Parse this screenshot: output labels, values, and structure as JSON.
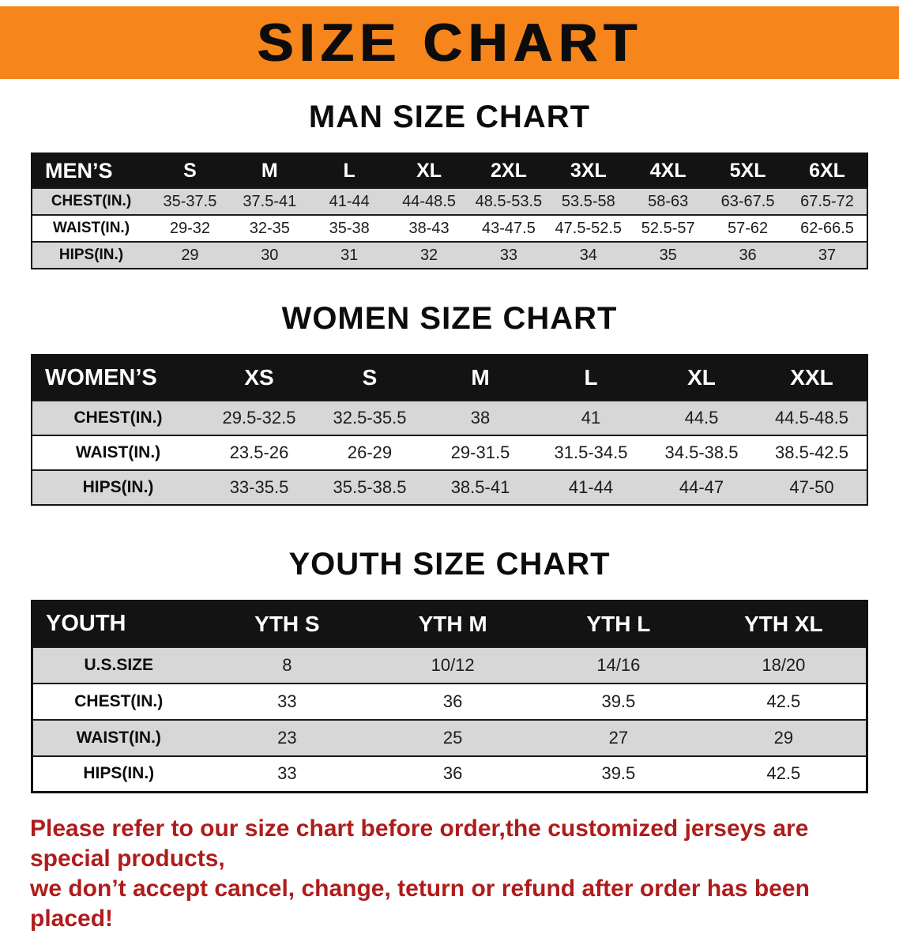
{
  "banner": {
    "title": "SIZE CHART"
  },
  "colors": {
    "banner_bg": "#F6861C",
    "header_bg": "#131313",
    "stripe": "#D7D7D7",
    "notice_text": "#B01C1C"
  },
  "sections": {
    "men": {
      "heading": "MAN SIZE CHART",
      "table": {
        "header": [
          "MEN’S",
          "S",
          "M",
          "L",
          "XL",
          "2XL",
          "3XL",
          "4XL",
          "5XL",
          "6XL"
        ],
        "rows": [
          [
            "CHEST(IN.)",
            "35-37.5",
            "37.5-41",
            "41-44",
            "44-48.5",
            "48.5-53.5",
            "53.5-58",
            "58-63",
            "63-67.5",
            "67.5-72"
          ],
          [
            "WAIST(IN.)",
            "29-32",
            "32-35",
            "35-38",
            "38-43",
            "43-47.5",
            "47.5-52.5",
            "52.5-57",
            "57-62",
            "62-66.5"
          ],
          [
            "HIPS(IN.)",
            "29",
            "30",
            "31",
            "32",
            "33",
            "34",
            "35",
            "36",
            "37"
          ]
        ]
      }
    },
    "women": {
      "heading": "WOMEN SIZE CHART",
      "table": {
        "header": [
          "WOMEN’S",
          "XS",
          "S",
          "M",
          "L",
          "XL",
          "XXL"
        ],
        "rows": [
          [
            "CHEST(IN.)",
            "29.5-32.5",
            "32.5-35.5",
            "38",
            "41",
            "44.5",
            "44.5-48.5"
          ],
          [
            "WAIST(IN.)",
            "23.5-26",
            "26-29",
            "29-31.5",
            "31.5-34.5",
            "34.5-38.5",
            "38.5-42.5"
          ],
          [
            "HIPS(IN.)",
            "33-35.5",
            "35.5-38.5",
            "38.5-41",
            "41-44",
            "44-47",
            "47-50"
          ]
        ]
      }
    },
    "youth": {
      "heading": "YOUTH SIZE CHART",
      "table": {
        "header": [
          "YOUTH",
          "YTH S",
          "YTH M",
          "YTH L",
          "YTH XL"
        ],
        "rows": [
          [
            "U.S.SIZE",
            "8",
            "10/12",
            "14/16",
            "18/20"
          ],
          [
            "CHEST(IN.)",
            "33",
            "36",
            "39.5",
            "42.5"
          ],
          [
            "WAIST(IN.)",
            "23",
            "25",
            "27",
            "29"
          ],
          [
            "HIPS(IN.)",
            "33",
            "36",
            "39.5",
            "42.5"
          ]
        ]
      }
    }
  },
  "footer": {
    "line1": "Please refer to our size chart before order,the customized jerseys are special products,",
    "line2": "we don’t accept cancel, change, teturn or refund after order has been placed!"
  }
}
